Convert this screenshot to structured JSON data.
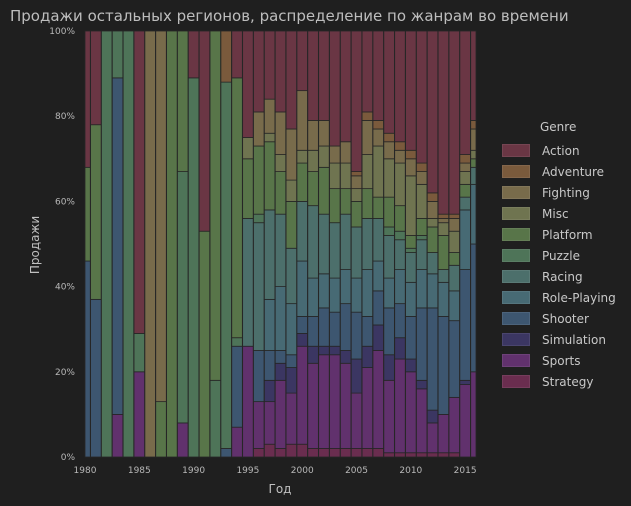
{
  "title": "Продажи остальных регионов, распределение по жанрам во времени",
  "chart_data": {
    "type": "bar",
    "stacked": true,
    "normalized": true,
    "xlabel": "Год",
    "ylabel": "Продажи",
    "xlim": [
      1980,
      2016
    ],
    "ylim": [
      0,
      100
    ],
    "x_ticks": [
      "1980",
      "1985",
      "1990",
      "1995",
      "2000",
      "2005",
      "2010",
      "2015"
    ],
    "y_ticks": [
      "0%",
      "20%",
      "40%",
      "60%",
      "80%",
      "100%"
    ],
    "legend_title": "Genre",
    "legend_position": "right",
    "grid": false,
    "genres": [
      "Action",
      "Adventure",
      "Fighting",
      "Misc",
      "Platform",
      "Puzzle",
      "Racing",
      "Role-Playing",
      "Shooter",
      "Simulation",
      "Sports",
      "Strategy"
    ],
    "colors": {
      "Action": "#6a3644",
      "Adventure": "#7a5a3c",
      "Fighting": "#786b4b",
      "Misc": "#6f7450",
      "Platform": "#587549",
      "Puzzle": "#4e7458",
      "Racing": "#4c6f6b",
      "Role-Playing": "#476a74",
      "Shooter": "#3d5670",
      "Simulation": "#3b3662",
      "Sports": "#61316d",
      "Strategy": "#6a2d4f"
    },
    "years": [
      1980,
      1981,
      1982,
      1983,
      1984,
      1985,
      1986,
      1987,
      1988,
      1989,
      1990,
      1991,
      1992,
      1993,
      1994,
      1995,
      1996,
      1997,
      1998,
      1999,
      2000,
      2001,
      2002,
      2003,
      2004,
      2005,
      2006,
      2007,
      2008,
      2009,
      2010,
      2011,
      2012,
      2013,
      2014,
      2015,
      2016
    ],
    "shares": {
      "1980": {
        "Shooter": 46,
        "Platform": 22,
        "Action": 32
      },
      "1981": {
        "Shooter": 37,
        "Platform": 41,
        "Action": 22
      },
      "1982": {
        "Puzzle": 100
      },
      "1983": {
        "Sports": 10,
        "Shooter": 79,
        "Puzzle": 11
      },
      "1984": {
        "Puzzle": 100
      },
      "1985": {
        "Sports": 20,
        "Puzzle": 9,
        "Action": 71
      },
      "1986": {
        "Fighting": 100
      },
      "1987": {
        "Platform": 13,
        "Fighting": 87
      },
      "1988": {
        "Platform": 100
      },
      "1989": {
        "Sports": 8,
        "Puzzle": 59,
        "Platform": 33
      },
      "1990": {
        "Puzzle": 89,
        "Action": 11
      },
      "1991": {
        "Platform": 53,
        "Action": 47
      },
      "1992": {
        "Puzzle": 18,
        "Platform": 82
      },
      "1993": {
        "Shooter": 2,
        "Puzzle": 86,
        "Adventure": 12
      },
      "1994": {
        "Sports": 7,
        "Shooter": 19,
        "Puzzle": 2,
        "Platform": 61,
        "Action": 11
      },
      "1995": {
        "Sports": 26,
        "Racing": 30,
        "Platform": 14,
        "Misc": 5,
        "Action": 25
      },
      "1996": {
        "Strategy": 2,
        "Sports": 11,
        "Shooter": 12,
        "Racing": 30,
        "Puzzle": 2,
        "Platform": 16,
        "Fighting": 8,
        "Action": 19
      },
      "1997": {
        "Strategy": 3,
        "Sports": 10,
        "Simulation": 5,
        "Shooter": 7,
        "Role-Playing": 12,
        "Racing": 21,
        "Platform": 16,
        "Fighting": 8,
        "Misc": 2,
        "Action": 16
      },
      "1998": {
        "Strategy": 2,
        "Sports": 16,
        "Simulation": 4,
        "Shooter": 3,
        "Role-Playing": 15,
        "Racing": 17,
        "Platform": 10,
        "Fighting": 10,
        "Misc": 4,
        "Action": 19
      },
      "1999": {
        "Strategy": 3,
        "Sports": 12,
        "Simulation": 6,
        "Shooter": 3,
        "Role-Playing": 12,
        "Racing": 13,
        "Platform": 11,
        "Fighting": 12,
        "Misc": 5,
        "Action": 23
      },
      "2000": {
        "Strategy": 3,
        "Sports": 23,
        "Simulation": 3,
        "Shooter": 4,
        "Role-Playing": 13,
        "Racing": 14,
        "Platform": 9,
        "Fighting": 14,
        "Misc": 3,
        "Action": 14
      },
      "2001": {
        "Strategy": 2,
        "Sports": 20,
        "Simulation": 4,
        "Shooter": 7,
        "Role-Playing": 9,
        "Racing": 17,
        "Platform": 8,
        "Fighting": 7,
        "Misc": 5,
        "Action": 21
      },
      "2002": {
        "Strategy": 2,
        "Sports": 22,
        "Simulation": 2,
        "Shooter": 9,
        "Role-Playing": 8,
        "Racing": 14,
        "Platform": 11,
        "Fighting": 6,
        "Misc": 5,
        "Action": 21
      },
      "2003": {
        "Strategy": 2,
        "Sports": 22,
        "Simulation": 2,
        "Shooter": 8,
        "Role-Playing": 8,
        "Racing": 13,
        "Platform": 8,
        "Fighting": 4,
        "Misc": 6,
        "Action": 27
      },
      "2004": {
        "Strategy": 2,
        "Sports": 20,
        "Simulation": 3,
        "Shooter": 11,
        "Role-Playing": 8,
        "Racing": 13,
        "Platform": 6,
        "Fighting": 5,
        "Misc": 6,
        "Action": 26
      },
      "2005": {
        "Strategy": 2,
        "Sports": 13,
        "Simulation": 8,
        "Shooter": 11,
        "Role-Playing": 8,
        "Racing": 12,
        "Platform": 6,
        "Fighting": 3,
        "Misc": 3,
        "Adventure": 1,
        "Action": 33
      },
      "2006": {
        "Strategy": 2,
        "Sports": 19,
        "Simulation": 5,
        "Shooter": 7,
        "Role-Playing": 11,
        "Racing": 12,
        "Platform": 7,
        "Fighting": 8,
        "Misc": 8,
        "Adventure": 2,
        "Action": 19
      },
      "2007": {
        "Strategy": 2,
        "Sports": 23,
        "Simulation": 6,
        "Shooter": 8,
        "Role-Playing": 7,
        "Racing": 10,
        "Platform": 5,
        "Fighting": 4,
        "Misc": 12,
        "Adventure": 2,
        "Action": 21
      },
      "2008": {
        "Strategy": 1,
        "Sports": 17,
        "Simulation": 6,
        "Shooter": 11,
        "Role-Playing": 7,
        "Racing": 10,
        "Puzzle": 2,
        "Platform": 7,
        "Fighting": 4,
        "Misc": 9,
        "Adventure": 2,
        "Action": 24
      },
      "2009": {
        "Strategy": 1,
        "Sports": 22,
        "Simulation": 5,
        "Shooter": 8,
        "Role-Playing": 8,
        "Racing": 7,
        "Puzzle": 2,
        "Platform": 6,
        "Fighting": 3,
        "Misc": 10,
        "Adventure": 2,
        "Action": 26
      },
      "2010": {
        "Strategy": 1,
        "Sports": 19,
        "Simulation": 3,
        "Shooter": 10,
        "Role-Playing": 8,
        "Racing": 7,
        "Puzzle": 1,
        "Platform": 3,
        "Fighting": 4,
        "Misc": 14,
        "Adventure": 2,
        "Action": 28
      },
      "2011": {
        "Strategy": 1,
        "Sports": 15,
        "Simulation": 2,
        "Shooter": 17,
        "Role-Playing": 9,
        "Racing": 7,
        "Puzzle": 1,
        "Platform": 4,
        "Fighting": 3,
        "Misc": 8,
        "Adventure": 2,
        "Action": 31
      },
      "2012": {
        "Strategy": 1,
        "Sports": 7,
        "Simulation": 3,
        "Shooter": 24,
        "Role-Playing": 8,
        "Racing": 5,
        "Platform": 6,
        "Fighting": 4,
        "Misc": 2,
        "Adventure": 2,
        "Action": 38
      },
      "2013": {
        "Strategy": 1,
        "Sports": 9,
        "Shooter": 23,
        "Role-Playing": 8,
        "Racing": 3,
        "Platform": 8,
        "Fighting": 1,
        "Misc": 3,
        "Adventure": 1,
        "Action": 43
      },
      "2014": {
        "Strategy": 1,
        "Sports": 13,
        "Shooter": 18,
        "Role-Playing": 7,
        "Racing": 6,
        "Platform": 3,
        "Fighting": 3,
        "Misc": 5,
        "Adventure": 1,
        "Action": 43
      },
      "2015": {
        "Sports": 17,
        "Simulation": 1,
        "Shooter": 26,
        "Role-Playing": 14,
        "Racing": 3,
        "Platform": 3,
        "Fighting": 2,
        "Misc": 3,
        "Adventure": 2,
        "Action": 29
      },
      "2016": {
        "Sports": 20,
        "Shooter": 30,
        "Role-Playing": 14,
        "Racing": 4,
        "Platform": 2,
        "Fighting": 5,
        "Misc": 2,
        "Adventure": 2,
        "Action": 21
      }
    }
  }
}
